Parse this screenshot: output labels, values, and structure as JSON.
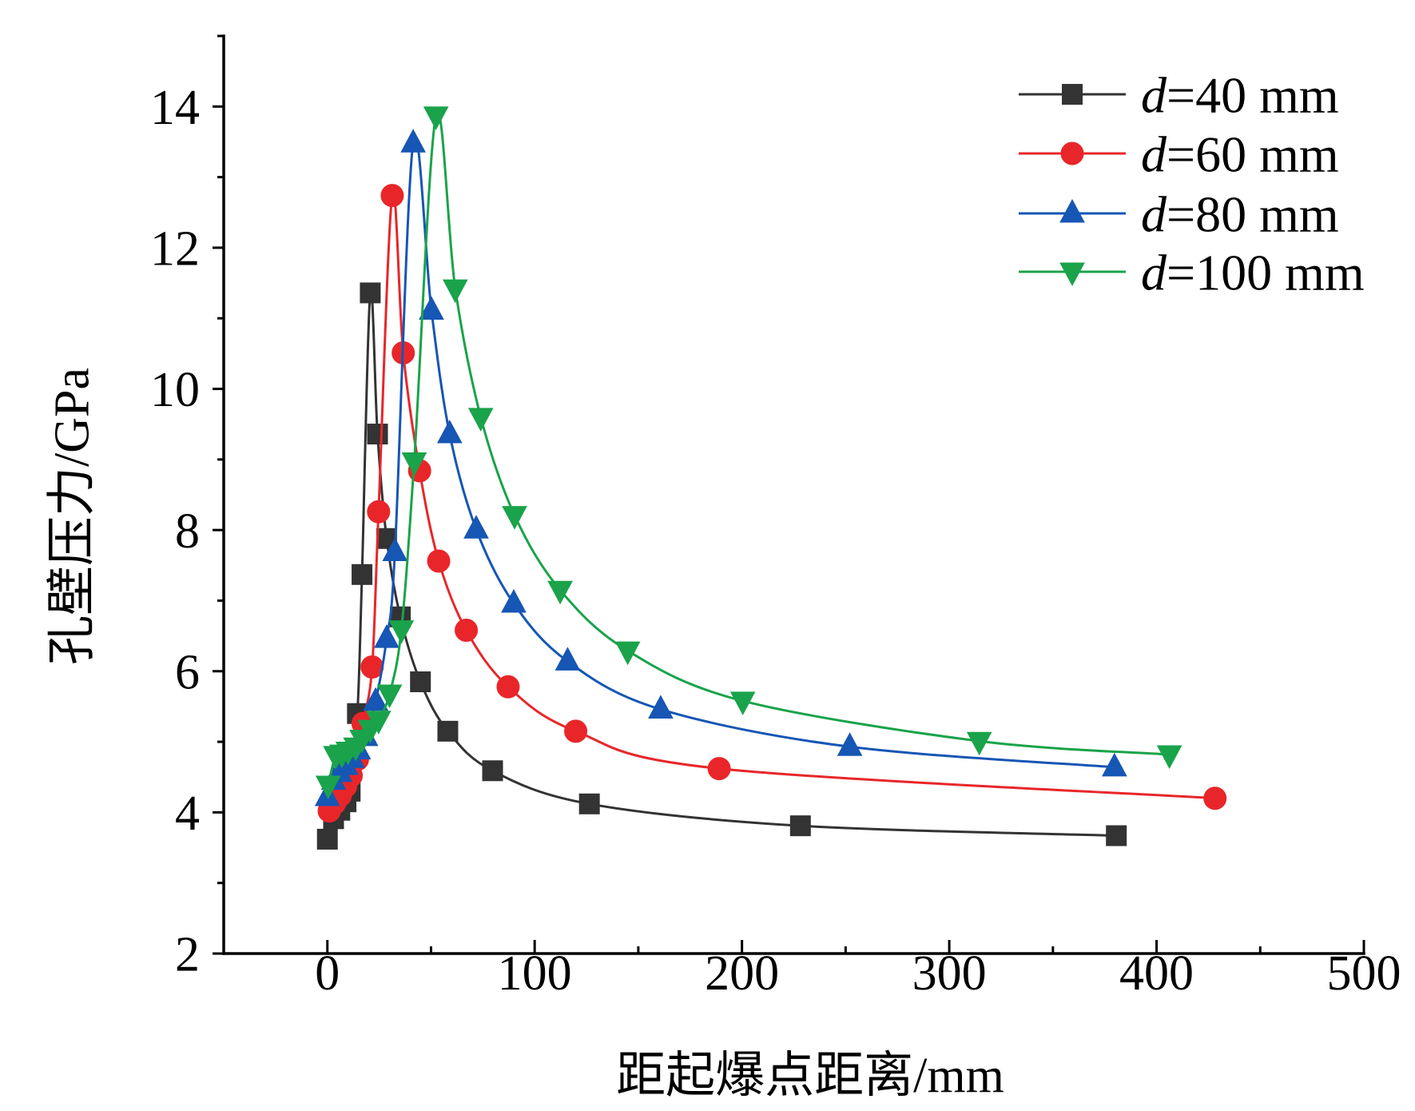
{
  "chart_data": {
    "type": "line",
    "title": "",
    "xlabel": "距起爆点距离/mm",
    "ylabel": "孔壁压力/GPa",
    "xlim": [
      -50,
      500
    ],
    "ylim": [
      2,
      15
    ],
    "xticks": [
      0,
      100,
      200,
      300,
      400,
      500
    ],
    "yticks": [
      2,
      4,
      6,
      8,
      10,
      12,
      14
    ],
    "grid": false,
    "legend_position": "top-right",
    "series": [
      {
        "name": "d=40 mm",
        "color": "#333333",
        "marker": "square",
        "x": [
          0,
          3,
          6,
          9,
          11,
          14.5,
          16.7,
          20.7,
          24.2,
          28.6,
          35.2,
          44.9,
          58.1,
          79.7,
          126.4,
          228.2,
          380.6
        ],
        "y": [
          3.62,
          3.91,
          4.03,
          4.15,
          4.3,
          5.4,
          7.37,
          11.36,
          9.36,
          7.88,
          6.77,
          5.85,
          5.15,
          4.59,
          4.12,
          3.81,
          3.67
        ]
      },
      {
        "name": "d=60 mm",
        "color": "#e8262a",
        "marker": "circle",
        "x": [
          0.9,
          3.5,
          6.2,
          8.8,
          11.5,
          14.5,
          17.2,
          21.6,
          24.7,
          31.3,
          36.6,
          44.5,
          53.7,
          67.0,
          87.2,
          119.8,
          189.0,
          428.2
        ],
        "y": [
          4.02,
          4.13,
          4.24,
          4.37,
          4.52,
          4.75,
          5.26,
          6.06,
          8.26,
          12.74,
          10.51,
          8.84,
          7.56,
          6.58,
          5.78,
          5.15,
          4.62,
          4.2
        ]
      },
      {
        "name": "d=80 mm",
        "color": "#1656b4",
        "marker": "triangle-up",
        "x": [
          0,
          3,
          6,
          9,
          12,
          15,
          18.5,
          23.3,
          28.6,
          32.6,
          41.4,
          50.2,
          59.0,
          71.8,
          89.9,
          115.9,
          160.8,
          252.0,
          379.7
        ],
        "y": [
          4.22,
          4.45,
          4.56,
          4.66,
          4.76,
          4.88,
          5.07,
          5.57,
          6.46,
          7.69,
          13.48,
          11.11,
          9.36,
          8.01,
          6.96,
          6.14,
          5.46,
          4.93,
          4.64
        ]
      },
      {
        "name": "d=100 mm",
        "color": "#1aa34a",
        "marker": "triangle-down",
        "x": [
          0.4,
          4,
          7,
          10,
          13.7,
          16.7,
          20.7,
          24.7,
          30,
          35.7,
          41.9,
          52.4,
          61.7,
          74.0,
          90.3,
          112.3,
          144.9,
          200.4,
          314.5,
          406.2
        ],
        "y": [
          4.39,
          4.81,
          4.83,
          4.87,
          4.93,
          5.04,
          5.18,
          5.31,
          5.68,
          6.59,
          8.97,
          13.87,
          11.42,
          9.6,
          8.21,
          7.15,
          6.29,
          5.58,
          5.01,
          4.82
        ]
      }
    ]
  }
}
